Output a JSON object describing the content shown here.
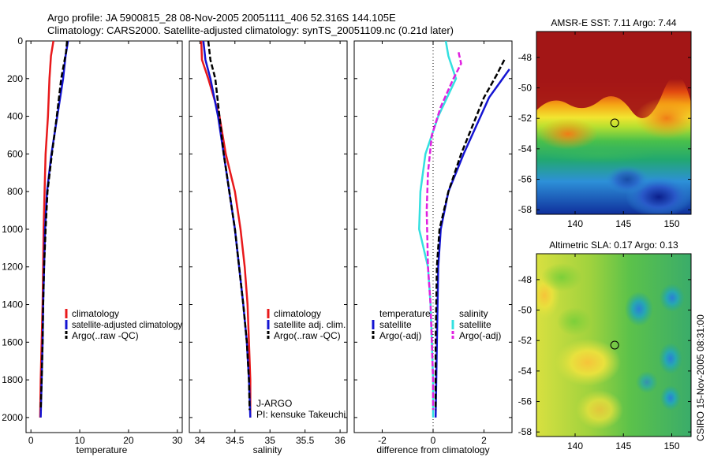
{
  "header": {
    "line1": "Argo profile: JA 5900815_28 08-Nov-2005 20051111_406 52.316S 144.105E",
    "line2": "Climatology: CARS2000. Satellite-adjusted climatology: synTS_20051109.nc (0.21d later)"
  },
  "side_label": "CSIRO 15-Nov-2005 08:31:00",
  "colors": {
    "climatology": "#e8191b",
    "satellite": "#1414d2",
    "argo": "#000000",
    "satellite_salinity": "#33e0e0",
    "argo_adj_salinity": "#e020e0",
    "zero_line": "#000000"
  },
  "chart_data": [
    {
      "type": "line",
      "ylabel": "",
      "xlabel": "temperature",
      "xlim": [
        -1,
        31
      ],
      "ylim": [
        2080,
        0
      ],
      "y_reversed": true,
      "x_ticks": [
        "0",
        "10",
        "20",
        "30"
      ],
      "y_ticks": [
        "0",
        "200",
        "400",
        "600",
        "800",
        "1000",
        "1200",
        "1400",
        "1600",
        "1800",
        "2000"
      ],
      "legend": [
        "climatology",
        "satellite-adjusted climatology",
        "Argo(..raw -QC)"
      ],
      "series": [
        {
          "name": "climatology",
          "color_key": "climatology",
          "dash": "solid",
          "points": [
            [
              4.6,
              0
            ],
            [
              4.1,
              80
            ],
            [
              3.8,
              200
            ],
            [
              3.5,
              400
            ],
            [
              3.0,
              600
            ],
            [
              2.8,
              800
            ],
            [
              2.6,
              1000
            ],
            [
              2.5,
              1200
            ],
            [
              2.4,
              1400
            ],
            [
              2.2,
              1600
            ],
            [
              2.0,
              1800
            ],
            [
              1.9,
              2000
            ]
          ]
        },
        {
          "name": "satellite-adjusted climatology",
          "color_key": "satellite",
          "dash": "solid",
          "points": [
            [
              7.6,
              0
            ],
            [
              7.1,
              80
            ],
            [
              6.6,
              200
            ],
            [
              5.4,
              400
            ],
            [
              4.2,
              600
            ],
            [
              3.3,
              800
            ],
            [
              2.9,
              1000
            ],
            [
              2.7,
              1200
            ],
            [
              2.5,
              1400
            ],
            [
              2.4,
              1600
            ],
            [
              2.2,
              1800
            ],
            [
              2.0,
              2000
            ]
          ]
        },
        {
          "name": "Argo(..raw -QC)",
          "color_key": "argo",
          "dash": "dashed",
          "points": [
            [
              7.4,
              0
            ],
            [
              7.2,
              60
            ],
            [
              6.2,
              200
            ],
            [
              5.3,
              400
            ],
            [
              4.3,
              600
            ],
            [
              3.4,
              800
            ],
            [
              3.0,
              1000
            ],
            [
              2.7,
              1200
            ],
            [
              2.5,
              1400
            ],
            [
              2.4,
              1600
            ],
            [
              2.2,
              1800
            ],
            [
              2.0,
              1960
            ]
          ]
        }
      ]
    },
    {
      "type": "line",
      "xlabel": "salinity",
      "xlim": [
        33.85,
        36.1
      ],
      "ylim": [
        2080,
        0
      ],
      "y_reversed": true,
      "x_ticks": [
        "34",
        "34.5",
        "35",
        "35.5",
        "36"
      ],
      "legend": [
        "climatology",
        "satellite adj. clim.",
        "Argo(..raw -QC)"
      ],
      "annotation": [
        "J-ARGO",
        "PI: kensuke Takeuchi"
      ],
      "series": [
        {
          "name": "climatology",
          "color_key": "climatology",
          "dash": "solid",
          "points": [
            [
              34.02,
              0
            ],
            [
              34.03,
              100
            ],
            [
              34.12,
              200
            ],
            [
              34.28,
              400
            ],
            [
              34.37,
              600
            ],
            [
              34.5,
              800
            ],
            [
              34.58,
              1000
            ],
            [
              34.64,
              1200
            ],
            [
              34.68,
              1400
            ],
            [
              34.7,
              1600
            ],
            [
              34.72,
              1800
            ],
            [
              34.72,
              2000
            ]
          ]
        },
        {
          "name": "satellite adj. clim.",
          "color_key": "satellite",
          "dash": "solid",
          "points": [
            [
              34.05,
              0
            ],
            [
              34.08,
              100
            ],
            [
              34.15,
              200
            ],
            [
              34.26,
              400
            ],
            [
              34.34,
              600
            ],
            [
              34.42,
              800
            ],
            [
              34.5,
              1000
            ],
            [
              34.56,
              1200
            ],
            [
              34.62,
              1400
            ],
            [
              34.67,
              1600
            ],
            [
              34.7,
              1800
            ],
            [
              34.72,
              2000
            ]
          ]
        },
        {
          "name": "Argo(..raw -QC)",
          "color_key": "argo",
          "dash": "dashed",
          "points": [
            [
              34.12,
              0
            ],
            [
              34.15,
              100
            ],
            [
              34.22,
              200
            ],
            [
              34.28,
              400
            ],
            [
              34.34,
              600
            ],
            [
              34.42,
              800
            ],
            [
              34.5,
              1000
            ],
            [
              34.56,
              1200
            ],
            [
              34.62,
              1400
            ],
            [
              34.67,
              1600
            ],
            [
              34.7,
              1800
            ],
            [
              34.71,
              1960
            ]
          ]
        }
      ]
    },
    {
      "type": "line",
      "xlabel": "difference from climatology",
      "xlim": [
        -3.1,
        3.1
      ],
      "ylim": [
        2080,
        0
      ],
      "y_reversed": true,
      "x_ticks": [
        "-2",
        "0",
        "2"
      ],
      "legend_groups": [
        {
          "title": "temperature",
          "entries": [
            "satellite",
            "Argo(-adj)"
          ]
        },
        {
          "title": "salinity",
          "entries": [
            "satellite",
            "Argo(-adj)"
          ]
        }
      ],
      "series": [
        {
          "name": "temperature satellite",
          "color_key": "satellite",
          "dash": "solid",
          "points": [
            [
              3.0,
              150
            ],
            [
              2.2,
              300
            ],
            [
              1.2,
              600
            ],
            [
              0.6,
              800
            ],
            [
              0.3,
              1000
            ],
            [
              0.2,
              1200
            ],
            [
              0.15,
              1600
            ],
            [
              0.1,
              2000
            ]
          ]
        },
        {
          "name": "temperature Argo(-adj)",
          "color_key": "argo",
          "dash": "dashed",
          "points": [
            [
              2.8,
              100
            ],
            [
              2.5,
              180
            ],
            [
              2.0,
              300
            ],
            [
              1.1,
              600
            ],
            [
              0.6,
              800
            ],
            [
              0.25,
              1000
            ],
            [
              0.15,
              1200
            ],
            [
              0.1,
              1600
            ],
            [
              0.1,
              1960
            ]
          ]
        },
        {
          "name": "salinity satellite",
          "color_key": "satellite_salinity",
          "dash": "solid",
          "points": [
            [
              0.5,
              0
            ],
            [
              0.6,
              80
            ],
            [
              0.9,
              200
            ],
            [
              0.2,
              400
            ],
            [
              -0.3,
              600
            ],
            [
              -0.5,
              800
            ],
            [
              -0.55,
              1000
            ],
            [
              -0.2,
              1200
            ],
            [
              -0.1,
              1400
            ],
            [
              -0.05,
              1600
            ],
            [
              0.0,
              1800
            ],
            [
              0.0,
              2000
            ]
          ]
        },
        {
          "name": "salinity Argo(-adj)",
          "color_key": "argo_adj_salinity",
          "dash": "dashed",
          "points": [
            [
              1.0,
              60
            ],
            [
              1.1,
              120
            ],
            [
              0.8,
              200
            ],
            [
              0.3,
              350
            ],
            [
              -0.05,
              500
            ],
            [
              -0.2,
              700
            ],
            [
              -0.25,
              900
            ],
            [
              -0.2,
              1200
            ],
            [
              -0.1,
              1400
            ],
            [
              -0.05,
              1600
            ],
            [
              0.0,
              1800
            ],
            [
              0.0,
              1960
            ]
          ]
        }
      ]
    },
    {
      "type": "heatmap",
      "title": "AMSR-E SST: 7.11  Argo: 7.44",
      "x_ticks": [
        "140",
        "145",
        "150"
      ],
      "y_ticks": [
        "-48",
        "-50",
        "-52",
        "-54",
        "-56",
        "-58"
      ],
      "xlim": [
        136,
        152
      ],
      "ylim": [
        -58.3,
        -46.3
      ],
      "marker": {
        "lon": 144.1,
        "lat": -52.3
      }
    },
    {
      "type": "heatmap",
      "title": "Altimetric SLA: 0.17  Argo: 0.13",
      "x_ticks": [
        "140",
        "145",
        "150"
      ],
      "y_ticks": [
        "-48",
        "-50",
        "-52",
        "-54",
        "-56",
        "-58"
      ],
      "xlim": [
        136,
        152
      ],
      "ylim": [
        -58.3,
        -46.3
      ],
      "marker": {
        "lon": 144.1,
        "lat": -52.3
      }
    }
  ]
}
